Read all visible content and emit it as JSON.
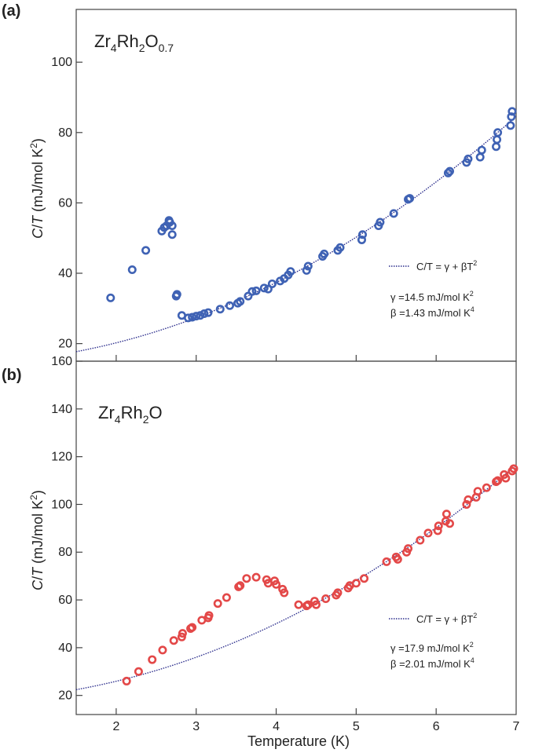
{
  "chart_data": [
    {
      "type": "scatter",
      "panel_label": "(a)",
      "formula": {
        "main": "Zr",
        "sub1": "4",
        "mid": "Rh",
        "sub2": "2",
        "end": "O",
        "sub3": "0.7"
      },
      "ylabel": {
        "italic1": "C",
        "slash": "/",
        "italic2": "T",
        "rest": " (mJ/mol K",
        "sup": "2",
        "close": ")"
      },
      "ylim": [
        15,
        115
      ],
      "yticks": [
        20,
        40,
        60,
        80,
        100
      ],
      "xlim": [
        1.5,
        7
      ],
      "marker_color": "#3f62b4",
      "fit_color": "#2b2d8c",
      "fit": {
        "gamma": 14.5,
        "beta": 1.43
      },
      "legend": {
        "fit_label": "C/T = γ + βT",
        "fit_label_sup": "2"
      },
      "params": [
        {
          "text": "γ =14.5 mJ/mol K",
          "sup": "2"
        },
        {
          "text": "β =1.43 mJ/mol K",
          "sup": "4"
        }
      ],
      "points": [
        [
          1.93,
          33.0
        ],
        [
          2.2,
          41.0
        ],
        [
          2.37,
          46.5
        ],
        [
          2.57,
          52.0
        ],
        [
          2.6,
          53.0
        ],
        [
          2.63,
          53.5
        ],
        [
          2.66,
          55.0
        ],
        [
          2.67,
          54.5
        ],
        [
          2.7,
          53.5
        ],
        [
          2.7,
          51.0
        ],
        [
          2.75,
          33.5
        ],
        [
          2.76,
          34.0
        ],
        [
          2.82,
          28.0
        ],
        [
          2.9,
          27.3
        ],
        [
          2.95,
          27.5
        ],
        [
          3.0,
          27.8
        ],
        [
          3.05,
          28.0
        ],
        [
          3.1,
          28.5
        ],
        [
          3.15,
          28.8
        ],
        [
          3.3,
          29.8
        ],
        [
          3.42,
          30.8
        ],
        [
          3.52,
          31.5
        ],
        [
          3.55,
          32.0
        ],
        [
          3.65,
          33.5
        ],
        [
          3.7,
          34.8
        ],
        [
          3.75,
          35.0
        ],
        [
          3.85,
          35.8
        ],
        [
          3.9,
          35.5
        ],
        [
          3.95,
          37.0
        ],
        [
          4.05,
          37.8
        ],
        [
          4.1,
          38.5
        ],
        [
          4.15,
          39.5
        ],
        [
          4.18,
          40.5
        ],
        [
          4.38,
          40.8
        ],
        [
          4.4,
          42.0
        ],
        [
          4.58,
          44.8
        ],
        [
          4.6,
          45.5
        ],
        [
          4.77,
          46.5
        ],
        [
          4.8,
          47.3
        ],
        [
          5.07,
          49.5
        ],
        [
          5.08,
          51.0
        ],
        [
          5.28,
          53.5
        ],
        [
          5.3,
          54.5
        ],
        [
          5.47,
          57.0
        ],
        [
          5.65,
          61.0
        ],
        [
          5.67,
          61.3
        ],
        [
          6.15,
          68.5
        ],
        [
          6.17,
          69.0
        ],
        [
          6.38,
          71.5
        ],
        [
          6.4,
          72.5
        ],
        [
          6.55,
          73.0
        ],
        [
          6.57,
          75.0
        ],
        [
          6.75,
          76.0
        ],
        [
          6.76,
          78.0
        ],
        [
          6.77,
          80.0
        ],
        [
          6.93,
          82.0
        ],
        [
          6.94,
          84.5
        ],
        [
          6.95,
          86.0
        ]
      ]
    },
    {
      "type": "scatter",
      "panel_label": "(b)",
      "formula": {
        "main": "Zr",
        "sub1": "4",
        "mid": "Rh",
        "sub2": "2",
        "end": "O",
        "sub3": ""
      },
      "ylabel": {
        "italic1": "C",
        "slash": "/",
        "italic2": "T",
        "rest": " (mJ/mol K",
        "sup": "2",
        "close": ")"
      },
      "ylim": [
        12,
        160
      ],
      "yticks": [
        20,
        40,
        60,
        80,
        100,
        120,
        140,
        160
      ],
      "xlim": [
        1.5,
        7
      ],
      "xticks": [
        2,
        3,
        4,
        5,
        6,
        7
      ],
      "xlabel": "Temperature (K)",
      "marker_color": "#e34848",
      "fit_color": "#2b2d8c",
      "fit": {
        "gamma": 17.9,
        "beta": 2.01
      },
      "legend": {
        "fit_label": "C/T = γ + βT",
        "fit_label_sup": "2"
      },
      "params": [
        {
          "text": "γ =17.9 mJ/mol K",
          "sup": "2"
        },
        {
          "text": "β =2.01 mJ/mol K",
          "sup": "4"
        }
      ],
      "points": [
        [
          2.13,
          26.0
        ],
        [
          2.28,
          30.0
        ],
        [
          2.45,
          35.0
        ],
        [
          2.58,
          39.0
        ],
        [
          2.72,
          43.0
        ],
        [
          2.82,
          44.5
        ],
        [
          2.83,
          46.0
        ],
        [
          2.93,
          48.0
        ],
        [
          2.95,
          48.5
        ],
        [
          3.07,
          51.5
        ],
        [
          3.15,
          52.5
        ],
        [
          3.16,
          53.5
        ],
        [
          3.27,
          58.5
        ],
        [
          3.38,
          61.0
        ],
        [
          3.53,
          65.5
        ],
        [
          3.55,
          66.0
        ],
        [
          3.63,
          69.0
        ],
        [
          3.75,
          69.5
        ],
        [
          3.88,
          68.5
        ],
        [
          3.9,
          67.0
        ],
        [
          3.98,
          68.0
        ],
        [
          4.0,
          66.5
        ],
        [
          4.08,
          64.5
        ],
        [
          4.1,
          63.0
        ],
        [
          4.28,
          58.0
        ],
        [
          4.38,
          57.5
        ],
        [
          4.4,
          58.0
        ],
        [
          4.48,
          59.5
        ],
        [
          4.5,
          58.0
        ],
        [
          4.62,
          60.5
        ],
        [
          4.75,
          62.0
        ],
        [
          4.77,
          63.0
        ],
        [
          4.9,
          65.0
        ],
        [
          4.92,
          66.0
        ],
        [
          5.0,
          67.0
        ],
        [
          5.1,
          69.0
        ],
        [
          5.38,
          76.0
        ],
        [
          5.5,
          78.0
        ],
        [
          5.52,
          77.0
        ],
        [
          5.63,
          80.0
        ],
        [
          5.65,
          81.5
        ],
        [
          5.8,
          85.0
        ],
        [
          5.9,
          88.0
        ],
        [
          6.02,
          89.0
        ],
        [
          6.03,
          91.0
        ],
        [
          6.12,
          93.0
        ],
        [
          6.13,
          96.0
        ],
        [
          6.17,
          92.0
        ],
        [
          6.38,
          100.0
        ],
        [
          6.4,
          102.0
        ],
        [
          6.5,
          103.0
        ],
        [
          6.52,
          105.5
        ],
        [
          6.63,
          107.0
        ],
        [
          6.75,
          109.5
        ],
        [
          6.77,
          110.0
        ],
        [
          6.85,
          112.5
        ],
        [
          6.87,
          111.0
        ],
        [
          6.95,
          114.0
        ],
        [
          6.97,
          115.0
        ]
      ]
    }
  ]
}
